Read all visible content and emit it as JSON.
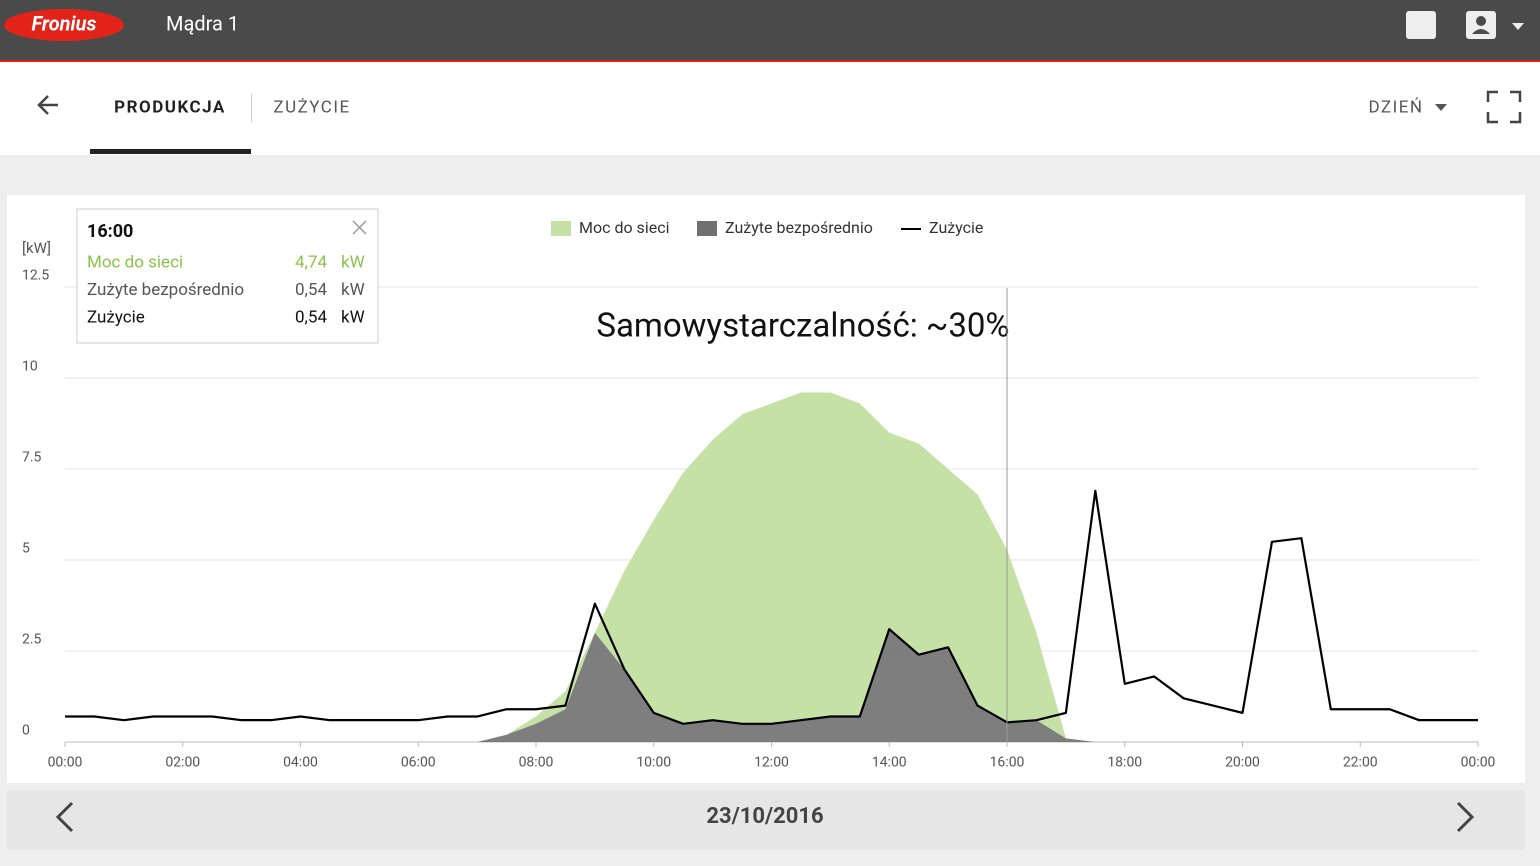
{
  "header": {
    "logo": "Fronius",
    "title": "Mądra 1"
  },
  "tabs": {
    "active": "PRODUKCJA",
    "other": "ZUŻYCIE",
    "period": "DZIEŃ"
  },
  "footer": {
    "date": "23/10/2016"
  },
  "tooltip": {
    "time": "16:00",
    "rows": [
      {
        "label": "Moc do sieci",
        "value": "4,74",
        "unit": "kW"
      },
      {
        "label": "Zużyte bezpośrednio",
        "value": "0,54",
        "unit": "kW"
      },
      {
        "label": "Zużycie",
        "value": "0,54",
        "unit": "kW"
      }
    ]
  },
  "chart_data": {
    "type": "area",
    "stacked": true,
    "y_label": "[kW]",
    "annotation": "Samowystarczalność: ~30%",
    "x": [
      0,
      0.5,
      1,
      1.5,
      2,
      2.5,
      3,
      3.5,
      4,
      4.5,
      5,
      5.5,
      6,
      6.5,
      7,
      7.5,
      8,
      8.5,
      9,
      9.5,
      10,
      10.5,
      11,
      11.5,
      12,
      12.5,
      13,
      13.5,
      14,
      14.5,
      15,
      15.5,
      16,
      16.5,
      17,
      17.5,
      18,
      18.5,
      19,
      19.5,
      20,
      20.5,
      21,
      21.5,
      22,
      22.5,
      23,
      23.5,
      24
    ],
    "xlim": [
      0,
      24
    ],
    "xticks": [
      {
        "value": 0,
        "label": "00:00"
      },
      {
        "value": 2,
        "label": "02:00"
      },
      {
        "value": 4,
        "label": "04:00"
      },
      {
        "value": 6,
        "label": "06:00"
      },
      {
        "value": 8,
        "label": "08:00"
      },
      {
        "value": 10,
        "label": "10:00"
      },
      {
        "value": 12,
        "label": "12:00"
      },
      {
        "value": 14,
        "label": "14:00"
      },
      {
        "value": 16,
        "label": "16:00"
      },
      {
        "value": 18,
        "label": "18:00"
      },
      {
        "value": 20,
        "label": "20:00"
      },
      {
        "value": 22,
        "label": "22:00"
      },
      {
        "value": 24,
        "label": "00:00"
      }
    ],
    "ylim": [
      0,
      12.5
    ],
    "yticks": [
      0,
      2.5,
      5,
      7.5,
      10,
      12.5
    ],
    "grid": true,
    "series": [
      {
        "name": "Moc do sieci",
        "type": "area",
        "color": "#c5e1a5",
        "values": [
          0,
          0,
          0,
          0,
          0,
          0,
          0,
          0,
          0,
          0,
          0,
          0,
          0,
          0,
          0,
          0,
          0.2,
          0.5,
          0,
          2.7,
          5.3,
          6.9,
          7.7,
          8.5,
          8.8,
          9.0,
          8.9,
          8.6,
          5.4,
          5.8,
          4.9,
          5.8,
          4.74,
          2.4,
          0,
          0,
          0,
          0,
          0,
          0,
          0,
          0,
          0,
          0,
          0,
          0,
          0,
          0,
          0
        ]
      },
      {
        "name": "Zużyte bezpośrednio",
        "type": "area",
        "color": "#707070",
        "values": [
          0,
          0,
          0,
          0,
          0,
          0,
          0,
          0,
          0,
          0,
          0,
          0,
          0,
          0,
          0,
          0.2,
          0.5,
          0.9,
          3.0,
          2.0,
          0.8,
          0.5,
          0.6,
          0.5,
          0.5,
          0.6,
          0.7,
          0.7,
          3.1,
          2.4,
          2.6,
          1.0,
          0.54,
          0.6,
          0.1,
          0,
          0,
          0,
          0,
          0,
          0,
          0,
          0,
          0,
          0,
          0,
          0,
          0,
          0
        ]
      },
      {
        "name": "Zużycie",
        "type": "line",
        "color": "#000000",
        "values": [
          0.7,
          0.7,
          0.6,
          0.7,
          0.7,
          0.7,
          0.6,
          0.6,
          0.7,
          0.6,
          0.6,
          0.6,
          0.6,
          0.7,
          0.7,
          0.9,
          0.9,
          1.0,
          3.8,
          2.0,
          0.8,
          0.5,
          0.6,
          0.5,
          0.5,
          0.6,
          0.7,
          0.7,
          3.1,
          2.4,
          2.6,
          1.0,
          0.54,
          0.6,
          0.8,
          6.9,
          1.6,
          1.8,
          1.2,
          1.0,
          0.8,
          5.5,
          5.6,
          0.9,
          0.9,
          0.9,
          0.6,
          0.6,
          0.6
        ]
      }
    ]
  }
}
